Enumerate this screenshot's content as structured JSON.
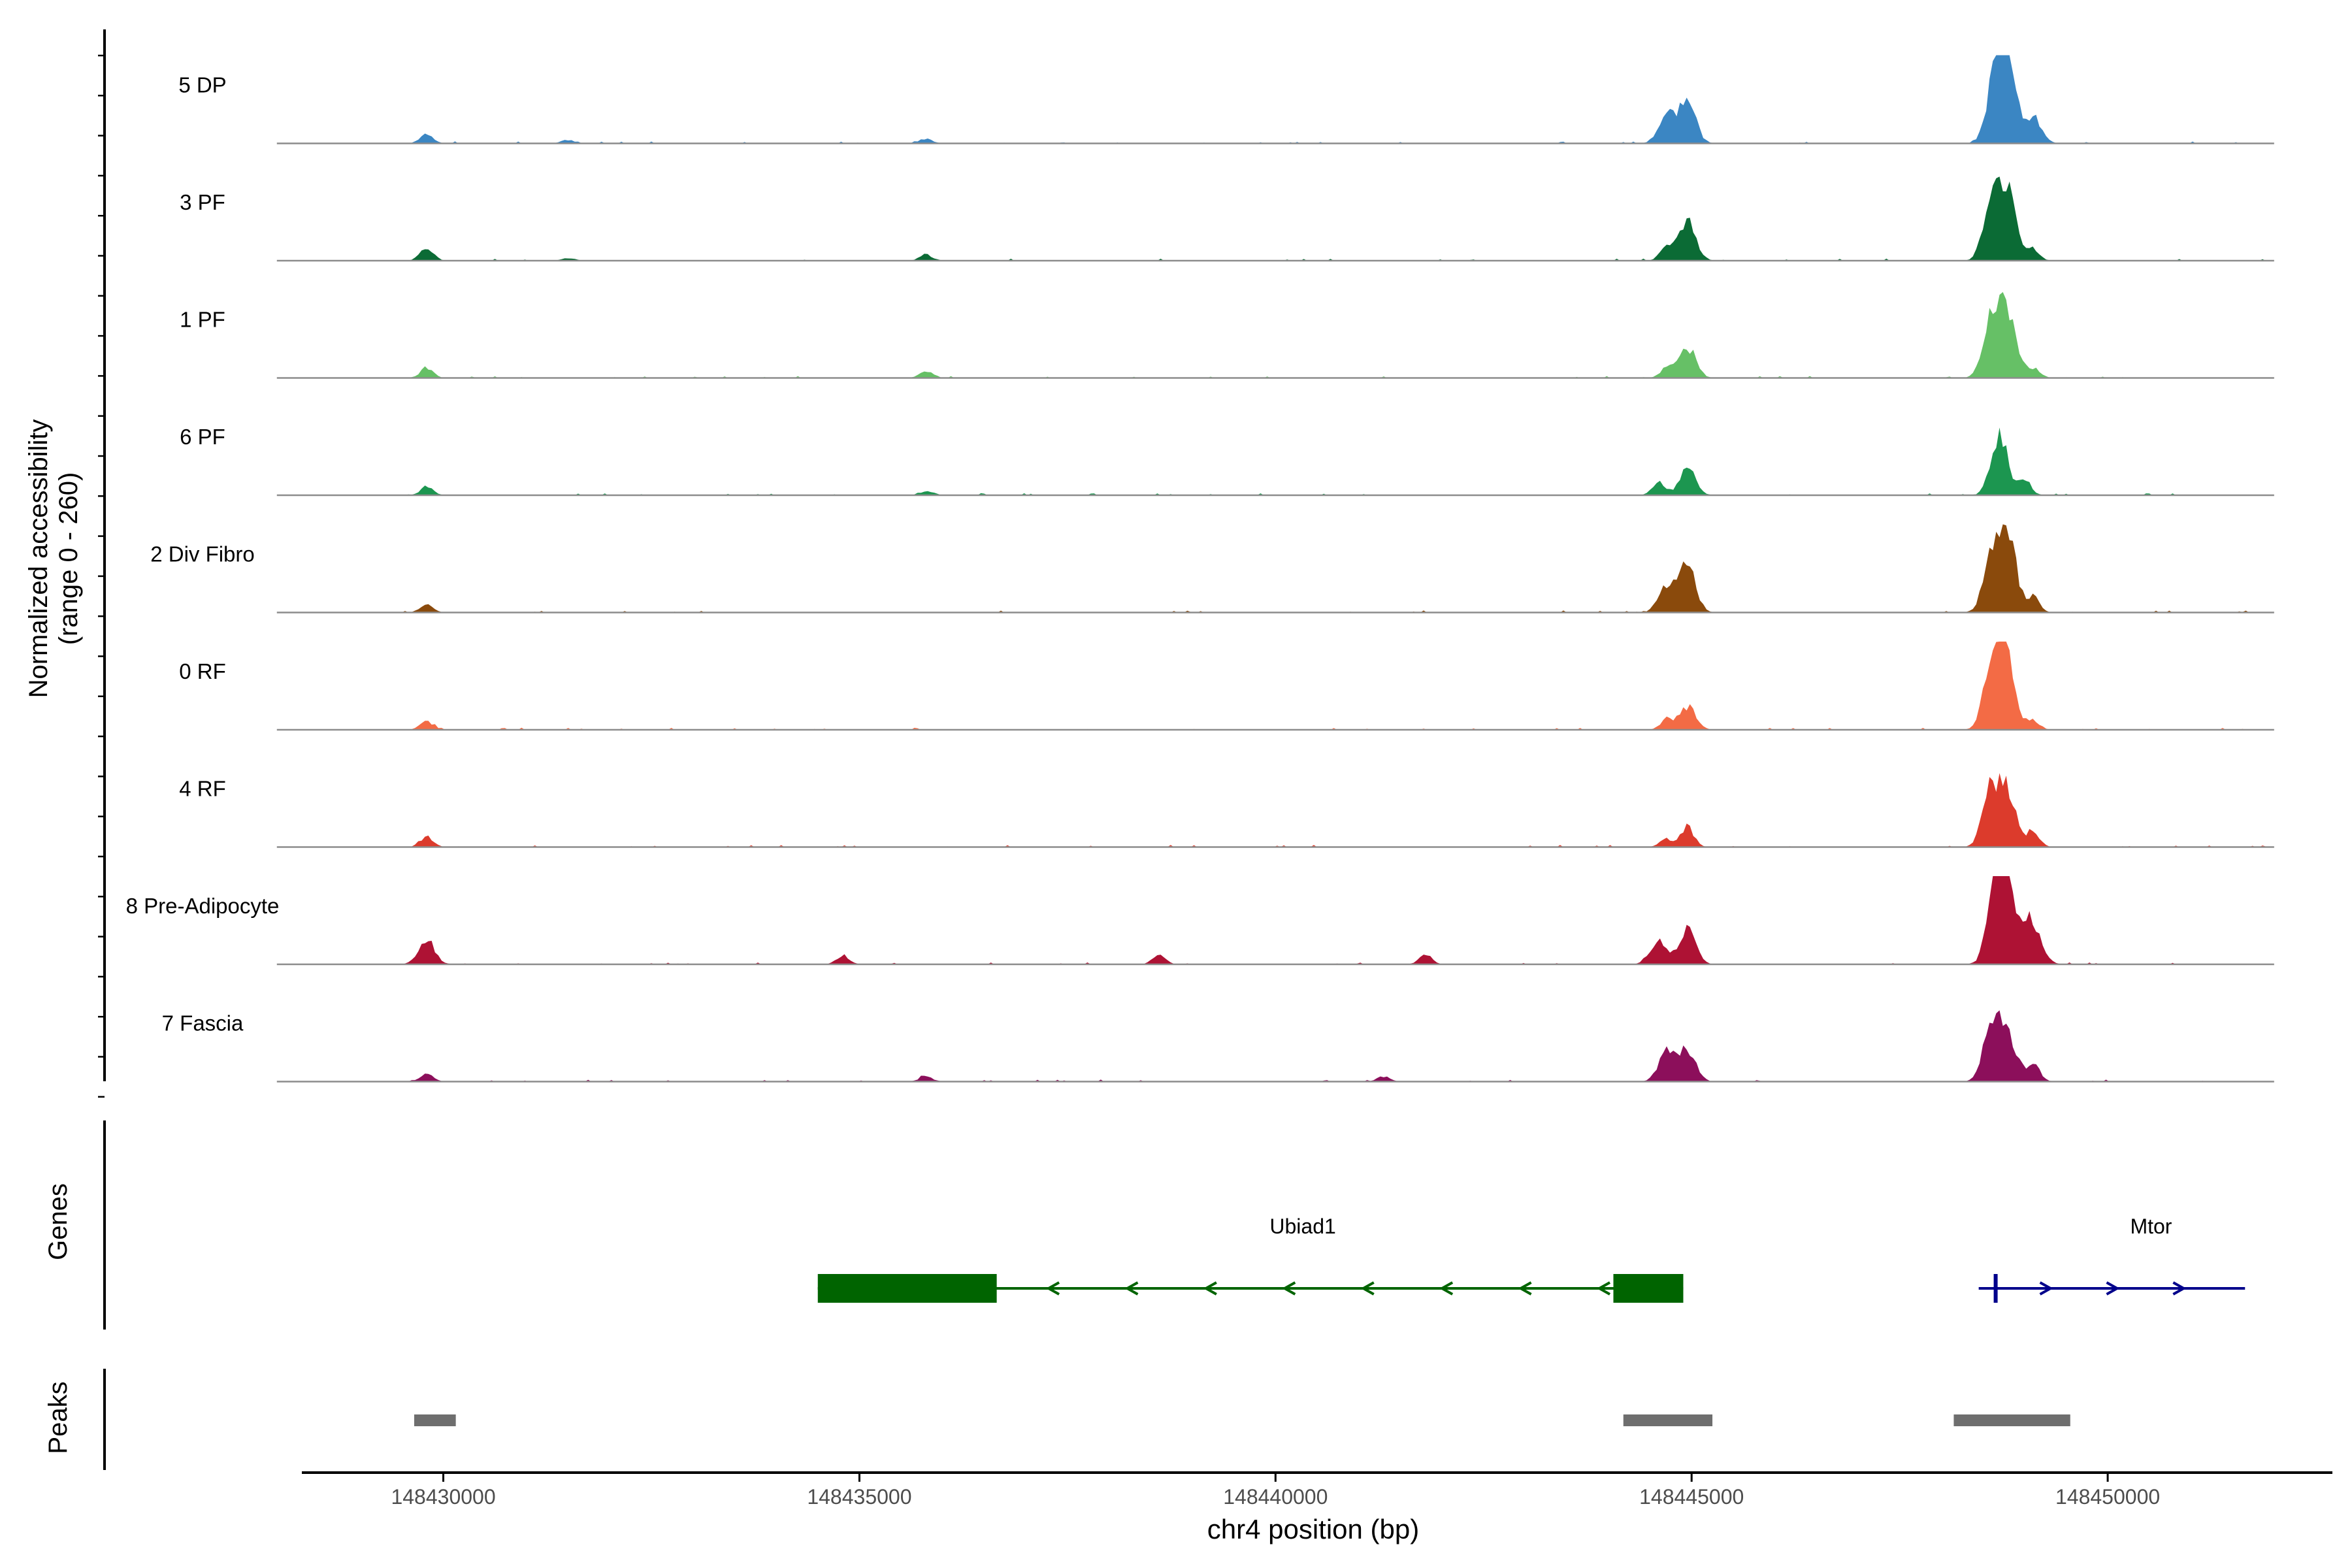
{
  "chart_data": {
    "type": "area",
    "title": "",
    "ylabel_line1": "Normalized accessibility",
    "ylabel_line2": "(range 0 - 260)",
    "xlabel": "chr4 position (bp)",
    "xlim": [
      148428300,
      148452700
    ],
    "ylim": [
      0,
      260
    ],
    "xticks": [
      148430000,
      148435000,
      148440000,
      148445000,
      148450000
    ],
    "xtick_labels": [
      "148430000",
      "148435000",
      "148440000",
      "148445000",
      "148450000"
    ],
    "series": [
      {
        "name": "5 DP",
        "color": "#3b86c3",
        "peaks": [
          [
            148429800,
            30
          ],
          [
            148431500,
            10
          ],
          [
            148435800,
            14
          ],
          [
            148444700,
            85
          ],
          [
            148444950,
            120
          ],
          [
            148448650,
            200
          ],
          [
            148448800,
            215
          ],
          [
            148449100,
            75
          ]
        ]
      },
      {
        "name": "3 PF",
        "color": "#0b6b35",
        "peaks": [
          [
            148429800,
            40
          ],
          [
            148431500,
            8
          ],
          [
            148435800,
            18
          ],
          [
            148444700,
            40
          ],
          [
            148444950,
            120
          ],
          [
            148448600,
            150
          ],
          [
            148448800,
            215
          ],
          [
            148449100,
            35
          ]
        ]
      },
      {
        "name": "1 PF",
        "color": "#66c066",
        "peaks": [
          [
            148429800,
            30
          ],
          [
            148435800,
            22
          ],
          [
            148444700,
            30
          ],
          [
            148444950,
            90
          ],
          [
            148448600,
            160
          ],
          [
            148448800,
            185
          ],
          [
            148449100,
            30
          ]
        ]
      },
      {
        "name": "6 PF",
        "color": "#1c9650",
        "peaks": [
          [
            148429800,
            25
          ],
          [
            148435800,
            12
          ],
          [
            148444600,
            40
          ],
          [
            148444950,
            75
          ],
          [
            148448700,
            180
          ],
          [
            148449000,
            45
          ]
        ]
      },
      {
        "name": "2 Div Fibro",
        "color": "#8a4a0c",
        "peaks": [
          [
            148429800,
            25
          ],
          [
            148444700,
            80
          ],
          [
            148444950,
            135
          ],
          [
            148448600,
            150
          ],
          [
            148448800,
            240
          ],
          [
            148449100,
            45
          ]
        ]
      },
      {
        "name": "0 RF",
        "color": "#f36b45",
        "peaks": [
          [
            148429800,
            25
          ],
          [
            148444700,
            30
          ],
          [
            148444950,
            70
          ],
          [
            148448600,
            180
          ],
          [
            148448780,
            230
          ],
          [
            148449100,
            30
          ]
        ]
      },
      {
        "name": "4 RF",
        "color": "#dc3b2c",
        "peaks": [
          [
            148429800,
            30
          ],
          [
            148444700,
            25
          ],
          [
            148444950,
            60
          ],
          [
            148448600,
            170
          ],
          [
            148448800,
            165
          ],
          [
            148449100,
            45
          ]
        ]
      },
      {
        "name": "8 Pre-Adipocyte",
        "color": "#ae1234",
        "peaks": [
          [
            148429800,
            70
          ],
          [
            148434800,
            25
          ],
          [
            148438600,
            25
          ],
          [
            148441800,
            25
          ],
          [
            148444600,
            70
          ],
          [
            148444950,
            100
          ],
          [
            148448650,
            190
          ],
          [
            148448750,
            250
          ],
          [
            148449000,
            115
          ],
          [
            148449150,
            70
          ]
        ]
      },
      {
        "name": "7 Fascia",
        "color": "#8c0f5b",
        "peaks": [
          [
            148429800,
            25
          ],
          [
            148435800,
            15
          ],
          [
            148441300,
            15
          ],
          [
            148444700,
            85
          ],
          [
            148444950,
            95
          ],
          [
            148448600,
            160
          ],
          [
            148448800,
            145
          ],
          [
            148449100,
            60
          ]
        ]
      }
    ],
    "genes_label": "Genes",
    "genes": [
      {
        "name": "Ubiad1",
        "strand": "-",
        "start": 148434500,
        "end": 148444900,
        "color": "#006400",
        "exons": [
          [
            148434500,
            148436650
          ],
          [
            148444060,
            148444900
          ]
        ]
      },
      {
        "name": "Mtor",
        "strand": "+",
        "start": 148448450,
        "end": 148451650,
        "color": "#00008b",
        "exons": [
          [
            148448630,
            148448660
          ]
        ]
      }
    ],
    "peaks_label": "Peaks",
    "peak_regions": [
      [
        148429650,
        148430150
      ],
      [
        148444180,
        148445250
      ],
      [
        148448150,
        148449550
      ]
    ],
    "grid": false,
    "legend": "none"
  }
}
